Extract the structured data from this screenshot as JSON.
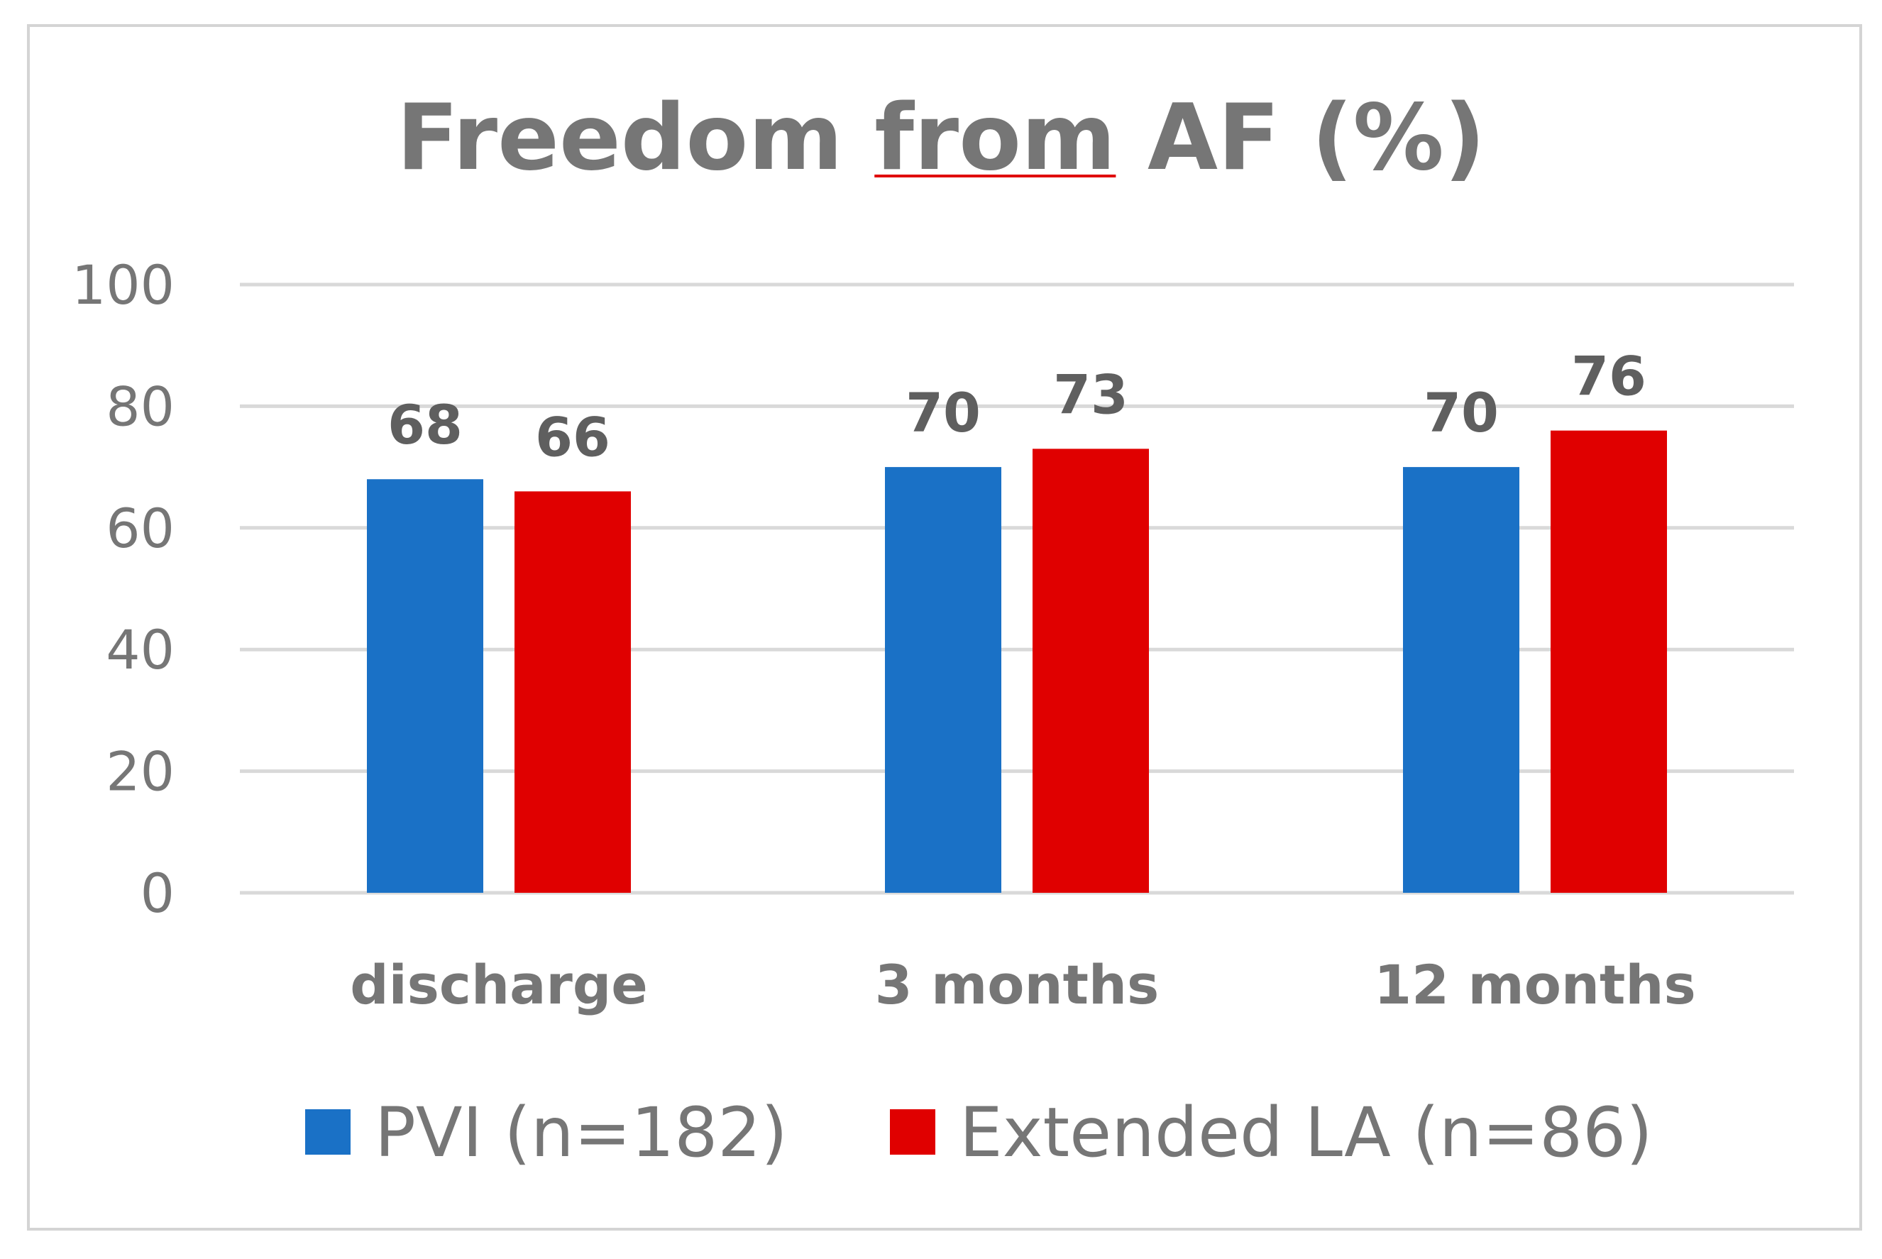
{
  "chart_data": {
    "type": "bar",
    "title": "Freedom from AF (%)",
    "title_spellcheck_word": "from",
    "categories": [
      "discharge",
      "3 months",
      "12 months"
    ],
    "series": [
      {
        "name": "PVI (n=182)",
        "color": "#1a71c6",
        "values": [
          68,
          70,
          70
        ]
      },
      {
        "name": "Extended LA (n=86)",
        "color": "#e00000",
        "values": [
          66,
          73,
          76
        ]
      }
    ],
    "yticks": [
      0,
      20,
      40,
      60,
      80,
      100
    ],
    "ylim": [
      0,
      100
    ],
    "xlabel": "",
    "ylabel": "",
    "grid": true,
    "legend": "bottom-center",
    "colors": {
      "text": "#767676",
      "data_label": "#5f5f5f",
      "gridline": "#d9d9d9",
      "border": "#d4d4d4",
      "spellcheck_underline": "#e00000"
    }
  }
}
